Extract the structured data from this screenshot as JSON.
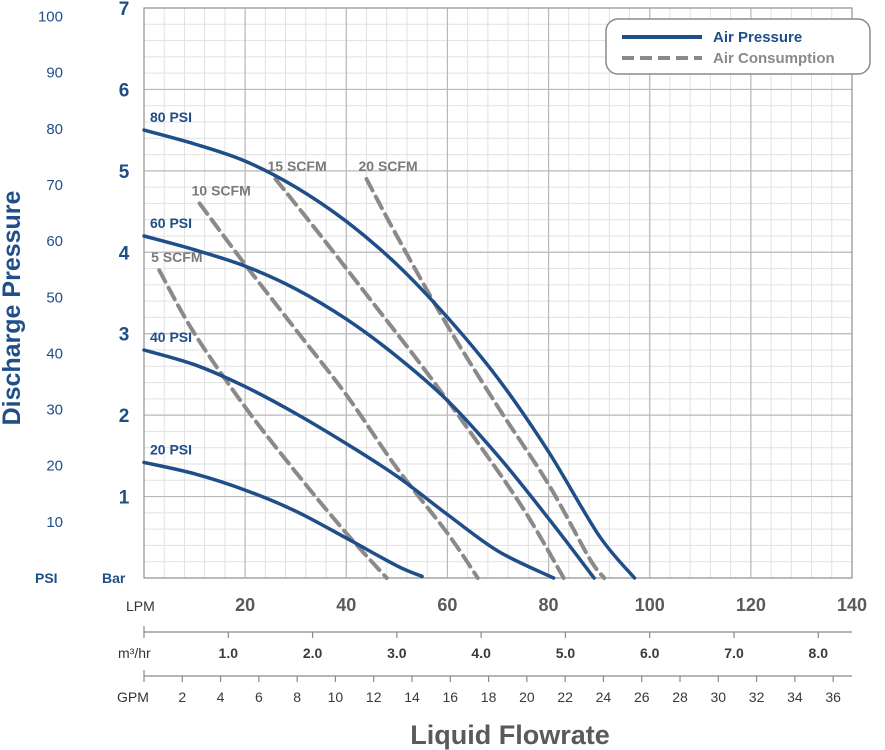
{
  "chart_data": {
    "type": "line",
    "title": "",
    "ylabel": "Discharge Pressure",
    "xlabel": "Liquid Flowrate",
    "primary_x_unit": "LPM",
    "primary_y_unit": "Bar",
    "secondary_y_unit": "PSI",
    "xlim": [
      0,
      140
    ],
    "ylim": [
      0,
      7
    ],
    "grid": true,
    "legend_position": "top-right",
    "colors": {
      "air_pressure": "#1f4e89",
      "air_consumption": "#8a8a8a",
      "grid_major": "#b9b9b9",
      "grid_minor": "#e1e1e1"
    },
    "x_ticks_lpm": [
      "20",
      "40",
      "60",
      "80",
      "100",
      "120",
      "140"
    ],
    "y_ticks_bar": [
      "1",
      "2",
      "3",
      "4",
      "5",
      "6",
      "7"
    ],
    "y_ticks_psi": [
      "10",
      "20",
      "30",
      "40",
      "50",
      "60",
      "70",
      "80",
      "90",
      "100"
    ],
    "m3hr_axis": {
      "label": "m³/hr",
      "ticks": [
        "1.0",
        "2.0",
        "3.0",
        "4.0",
        "5.0",
        "6.0",
        "7.0",
        "8.0"
      ]
    },
    "gpm_axis": {
      "label": "GPM",
      "ticks": [
        "2",
        "4",
        "6",
        "8",
        "10",
        "12",
        "14",
        "16",
        "18",
        "20",
        "22",
        "24",
        "26",
        "28",
        "30",
        "32",
        "34",
        "36"
      ]
    },
    "legend": {
      "air_pressure": "Air Pressure",
      "air_consumption": "Air Consumption"
    },
    "series": [
      {
        "name": "20 PSI",
        "group": "air_pressure",
        "points": [
          [
            0,
            1.42
          ],
          [
            10,
            1.28
          ],
          [
            20,
            1.08
          ],
          [
            30,
            0.82
          ],
          [
            40,
            0.49
          ],
          [
            50,
            0.15
          ],
          [
            55,
            0.02
          ]
        ]
      },
      {
        "name": "40 PSI",
        "group": "air_pressure",
        "points": [
          [
            0,
            2.8
          ],
          [
            10,
            2.62
          ],
          [
            20,
            2.35
          ],
          [
            30,
            2.02
          ],
          [
            40,
            1.65
          ],
          [
            50,
            1.25
          ],
          [
            60,
            0.78
          ],
          [
            70,
            0.33
          ],
          [
            81,
            0.0
          ]
        ]
      },
      {
        "name": "60 PSI",
        "group": "air_pressure",
        "points": [
          [
            0,
            4.2
          ],
          [
            10,
            4.03
          ],
          [
            20,
            3.83
          ],
          [
            30,
            3.55
          ],
          [
            40,
            3.18
          ],
          [
            50,
            2.72
          ],
          [
            60,
            2.18
          ],
          [
            70,
            1.5
          ],
          [
            80,
            0.73
          ],
          [
            89,
            0.0
          ]
        ]
      },
      {
        "name": "80 PSI",
        "group": "air_pressure",
        "points": [
          [
            0,
            5.5
          ],
          [
            10,
            5.33
          ],
          [
            20,
            5.12
          ],
          [
            30,
            4.8
          ],
          [
            40,
            4.38
          ],
          [
            50,
            3.85
          ],
          [
            60,
            3.2
          ],
          [
            70,
            2.45
          ],
          [
            80,
            1.55
          ],
          [
            90,
            0.52
          ],
          [
            97,
            0.0
          ]
        ]
      },
      {
        "name": "5 SCFM",
        "group": "air_consumption",
        "points": [
          [
            3,
            3.78
          ],
          [
            10,
            3.0
          ],
          [
            20,
            2.1
          ],
          [
            30,
            1.3
          ],
          [
            40,
            0.55
          ],
          [
            48,
            0.0
          ]
        ]
      },
      {
        "name": "10 SCFM",
        "group": "air_consumption",
        "points": [
          [
            11,
            4.6
          ],
          [
            20,
            3.85
          ],
          [
            30,
            3.05
          ],
          [
            40,
            2.25
          ],
          [
            50,
            1.35
          ],
          [
            60,
            0.55
          ],
          [
            66,
            0.0
          ]
        ]
      },
      {
        "name": "15 SCFM",
        "group": "air_consumption",
        "points": [
          [
            26,
            4.9
          ],
          [
            35,
            4.2
          ],
          [
            45,
            3.4
          ],
          [
            55,
            2.6
          ],
          [
            65,
            1.75
          ],
          [
            75,
            0.85
          ],
          [
            83,
            0.0
          ]
        ]
      },
      {
        "name": "20 SCFM",
        "group": "air_consumption",
        "points": [
          [
            44,
            4.9
          ],
          [
            50,
            4.2
          ],
          [
            60,
            3.1
          ],
          [
            70,
            2.1
          ],
          [
            80,
            1.15
          ],
          [
            88,
            0.25
          ],
          [
            91,
            0.0
          ]
        ]
      }
    ]
  }
}
